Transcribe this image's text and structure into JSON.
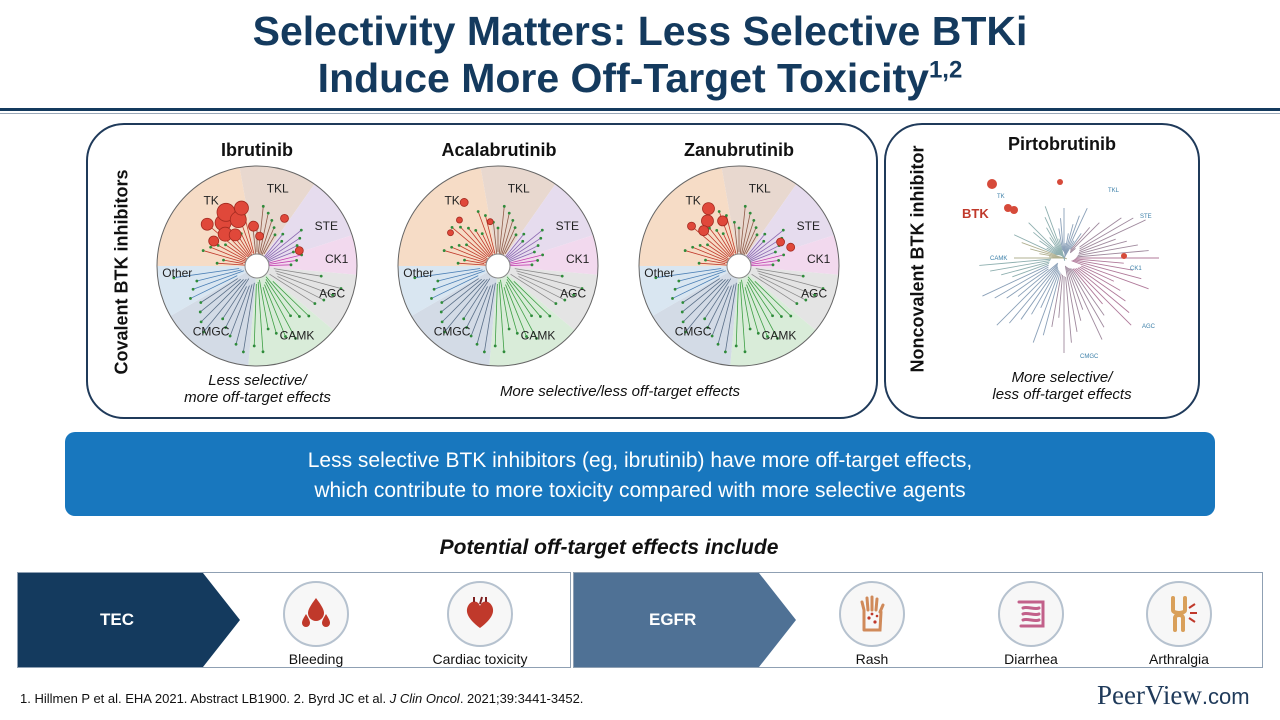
{
  "title": {
    "line1": "Selectivity Matters: Less Selective BTKi",
    "line2": "Induce More Off-Target Toxicity",
    "superscript": "1,2"
  },
  "covalent_panel": {
    "side_label": "Covalent BTK inhibitors",
    "drugs": [
      {
        "name": "Ibrutinib"
      },
      {
        "name": "Acalabrutinib"
      },
      {
        "name": "Zanubrutinib"
      }
    ],
    "family_labels": [
      "TK",
      "TKL",
      "STE",
      "CK1",
      "AGC",
      "CAMK",
      "CMGC",
      "Other"
    ],
    "note_left": "Less selective/",
    "note_left_2": "more off-target effects",
    "note_right": "More selective/less off-target effects"
  },
  "noncovalent_panel": {
    "side_label": "Noncovalent BTK inhibitor",
    "drug": "Pirtobrutinib",
    "btk_label": "BTK",
    "family_labels": [
      "TK",
      "TKL",
      "STE",
      "CK1",
      "AGC",
      "CAMK",
      "CMGC"
    ],
    "note_1": "More selective/",
    "note_2": "less off-target effects"
  },
  "banner": {
    "line1": "Less selective BTK inhibitors (eg, ibrutinib) have more off-target effects,",
    "line2": "which contribute to more toxicity compared with more selective agents"
  },
  "subhead": "Potential off-target effects include",
  "groups": [
    {
      "target": "TEC",
      "color": "#143a5e",
      "effects": [
        {
          "label": "Bleeding",
          "icon": "blood-drops-icon"
        },
        {
          "label": "Cardiac toxicity",
          "icon": "heart-icon"
        }
      ]
    },
    {
      "target": "EGFR",
      "color": "#4f7195",
      "effects": [
        {
          "label": "Rash",
          "icon": "hand-rash-icon"
        },
        {
          "label": "Diarrhea",
          "icon": "intestine-icon"
        },
        {
          "label": "Arthralgia",
          "icon": "joint-pain-icon"
        }
      ]
    }
  ],
  "footer": {
    "refs_a": "1. Hillmen P et al. EHA 2021. Abstract LB1900. 2. Byrd JC et al. ",
    "refs_journal": "J Clin Oncol",
    "refs_b": ". 2021;39:3441-3452."
  },
  "brand": {
    "name": "PeerView",
    "suffix": ".com"
  }
}
